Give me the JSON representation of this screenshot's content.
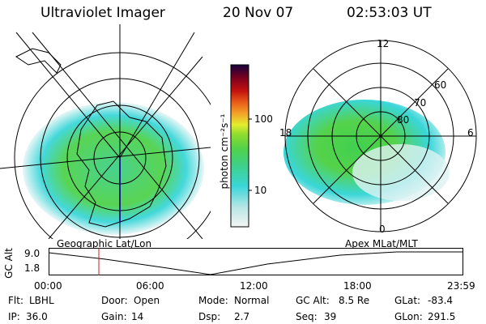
{
  "header": {
    "title": "Ultraviolet Imager",
    "date": "20 Nov 07",
    "time": "02:53:03 UT"
  },
  "colorbar": {
    "unit_label": "photon cm⁻²s⁻¹",
    "ticks": [
      "100",
      "10"
    ],
    "colors": [
      "#f4f4f4",
      "#b8e6e6",
      "#3ad6d8",
      "#3fd08a",
      "#50d24a",
      "#8fdc2e",
      "#e4ec30",
      "#f3a028",
      "#e85a18",
      "#c21010",
      "#7a0020",
      "#14003a"
    ]
  },
  "left_map": {
    "name": "geographic-map",
    "caption": "Geographic Lat/Lon"
  },
  "right_map": {
    "name": "apex-map",
    "caption": "Apex MLat/MLT",
    "mlt_labels": {
      "top": "12",
      "bottom": "0",
      "left": "18",
      "right": "6"
    },
    "lat_labels": [
      "60",
      "70",
      "80"
    ]
  },
  "timeline": {
    "axis_label": "GC Alt",
    "y_ticks": [
      "9.0",
      "1.8"
    ],
    "x_ticks": [
      "00:00",
      "06:00",
      "12:00",
      "18:00",
      "23:59"
    ],
    "marker_color": "#d02020"
  },
  "status": {
    "row1": [
      {
        "label": "Flt:",
        "value": "LBHL"
      },
      {
        "label": "Door:",
        "value": "Open"
      },
      {
        "label": "Mode:",
        "value": "Normal"
      },
      {
        "label": "GC Alt:",
        "value": "8.5 Re"
      },
      {
        "label": "GLat:",
        "value": "-83.4"
      }
    ],
    "row2": [
      {
        "label": "IP:",
        "value": "36.0"
      },
      {
        "label": "Gain:",
        "value": "14"
      },
      {
        "label": "Dsp:",
        "value": "2.7"
      },
      {
        "label": "Seq:",
        "value": "39"
      },
      {
        "label": "GLon:",
        "value": "291.5"
      }
    ]
  }
}
